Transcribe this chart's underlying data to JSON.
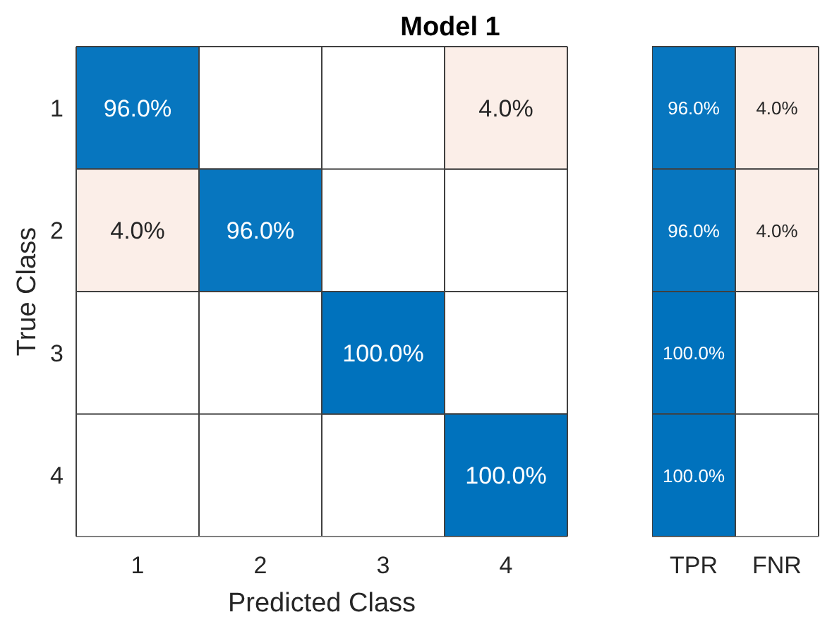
{
  "chart_data": [
    {
      "type": "heatmap",
      "title": "Model 1",
      "xlabel": "Predicted Class",
      "ylabel": "True Class",
      "categories": [
        "1",
        "2",
        "3",
        "4"
      ],
      "y_categories": [
        "1",
        "2",
        "3",
        "4"
      ],
      "grid": true,
      "cells": [
        [
          96.0,
          null,
          null,
          4.0
        ],
        [
          4.0,
          96.0,
          null,
          null
        ],
        [
          null,
          null,
          100.0,
          null
        ],
        [
          null,
          null,
          null,
          100.0
        ]
      ],
      "cell_labels": [
        [
          "96.0%",
          null,
          null,
          "4.0%"
        ],
        [
          "4.0%",
          "96.0%",
          null,
          null
        ],
        [
          null,
          null,
          "100.0%",
          null
        ],
        [
          null,
          null,
          null,
          "100.0%"
        ]
      ],
      "colors": [
        [
          "#0072bd",
          null,
          null,
          "#d95319"
        ],
        [
          "#d95319",
          "#0072bd",
          null,
          null
        ],
        [
          null,
          null,
          "#0072bd",
          null
        ],
        [
          null,
          null,
          null,
          "#0072bd"
        ]
      ]
    },
    {
      "type": "heatmap",
      "categories": [
        "TPR",
        "FNR"
      ],
      "y_categories": [
        null,
        null,
        null,
        null
      ],
      "grid": true,
      "cells": [
        [
          96.0,
          4.0
        ],
        [
          96.0,
          4.0
        ],
        [
          100.0,
          null
        ],
        [
          100.0,
          null
        ]
      ],
      "cell_labels": [
        [
          "96.0%",
          "4.0%"
        ],
        [
          "96.0%",
          "4.0%"
        ],
        [
          "100.0%",
          null
        ],
        [
          "100.0%",
          null
        ]
      ],
      "colors": [
        [
          "#0072bd",
          "#d95319"
        ],
        [
          "#0072bd",
          "#d95319"
        ],
        [
          "#0072bd",
          null
        ],
        [
          "#0072bd",
          null
        ]
      ]
    }
  ]
}
